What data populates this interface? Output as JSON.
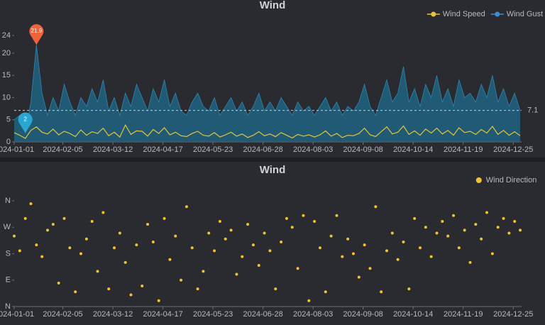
{
  "chart_data": [
    {
      "type": "line",
      "title": "Wind",
      "x": [
        "2024-01-01",
        "2024-01-05",
        "2024-01-09",
        "2024-01-13",
        "2024-01-17",
        "2024-01-21",
        "2024-01-25",
        "2024-01-29",
        "2024-02-02",
        "2024-02-06",
        "2024-02-10",
        "2024-02-14",
        "2024-02-18",
        "2024-02-22",
        "2024-02-26",
        "2024-03-01",
        "2024-03-05",
        "2024-03-09",
        "2024-03-13",
        "2024-03-17",
        "2024-03-21",
        "2024-03-25",
        "2024-03-29",
        "2024-04-02",
        "2024-04-06",
        "2024-04-10",
        "2024-04-14",
        "2024-04-18",
        "2024-04-22",
        "2024-04-26",
        "2024-04-30",
        "2024-05-04",
        "2024-05-08",
        "2024-05-12",
        "2024-05-16",
        "2024-05-20",
        "2024-05-24",
        "2024-05-28",
        "2024-06-01",
        "2024-06-05",
        "2024-06-09",
        "2024-06-13",
        "2024-06-17",
        "2024-06-21",
        "2024-06-25",
        "2024-06-29",
        "2024-07-03",
        "2024-07-07",
        "2024-07-11",
        "2024-07-15",
        "2024-07-19",
        "2024-07-23",
        "2024-07-27",
        "2024-07-31",
        "2024-08-04",
        "2024-08-08",
        "2024-08-12",
        "2024-08-16",
        "2024-08-20",
        "2024-08-24",
        "2024-08-28",
        "2024-09-01",
        "2024-09-05",
        "2024-09-09",
        "2024-09-13",
        "2024-09-17",
        "2024-09-21",
        "2024-09-25",
        "2024-09-29",
        "2024-10-03",
        "2024-10-07",
        "2024-10-11",
        "2024-10-15",
        "2024-10-19",
        "2024-10-23",
        "2024-10-27",
        "2024-10-31",
        "2024-11-04",
        "2024-11-08",
        "2024-11-12",
        "2024-11-16",
        "2024-11-20",
        "2024-11-24",
        "2024-11-28",
        "2024-12-02",
        "2024-12-06",
        "2024-12-10",
        "2024-12-14",
        "2024-12-18",
        "2024-12-22",
        "2024-12-26",
        "2024-12-30"
      ],
      "series": [
        {
          "name": "Wind Speed",
          "color": "#e6c53a",
          "values": [
            2.1,
            1.5,
            0.8,
            2.6,
            3.4,
            2.2,
            1.8,
            2.9,
            1.6,
            2.4,
            1.9,
            1.2,
            2.7,
            1.5,
            2.3,
            1.9,
            3.1,
            1.4,
            2.2,
            1.1,
            3.8,
            1.7,
            2.5,
            2.4,
            1.3,
            2.8,
            1.9,
            3.2,
            1.6,
            2.2,
            1.4,
            1.2,
            1.9,
            2.4,
            1.5,
            1.3,
            2.1,
            1.1,
            1.6,
            2.2,
            1.3,
            1.8,
            1.0,
            1.5,
            2.3,
            1.4,
            1.8,
            1.2,
            2.1,
            1.5,
            0.9,
            1.7,
            1.3,
            1.6,
            1.1,
            1.6,
            2.5,
            1.3,
            1.9,
            1.0,
            1.5,
            1.4,
            1.9,
            3.1,
            1.6,
            1.2,
            2.3,
            3.4,
            1.8,
            2.2,
            3.6,
            1.7,
            2.5,
            1.5,
            2.9,
            2.0,
            3.1,
            1.8,
            2.6,
            1.5,
            3.2,
            2.1,
            2.4,
            1.7,
            2.8,
            2.0,
            3.5,
            1.7,
            2.6,
            1.5,
            2.3,
            1.4
          ]
        },
        {
          "name": "Wind Gust",
          "color": "#3b8fd6",
          "area": true,
          "values": [
            5,
            6,
            2,
            9,
            21.9,
            11,
            6,
            10,
            7,
            13,
            9,
            6,
            10,
            8,
            12,
            9,
            14,
            7,
            10,
            6,
            11,
            8,
            13,
            10,
            7,
            12,
            9,
            14,
            8,
            11,
            7,
            6,
            9,
            11,
            8,
            7,
            10,
            6,
            8,
            10,
            7,
            9,
            6,
            8,
            11,
            7,
            9,
            7,
            10,
            8,
            6,
            9,
            7,
            8,
            6,
            8,
            10,
            7,
            9,
            6,
            8,
            7,
            9,
            13,
            8,
            6,
            10,
            14,
            9,
            11,
            17,
            9,
            12,
            8,
            13,
            10,
            15,
            9,
            12,
            8,
            14,
            10,
            11,
            9,
            13,
            10,
            15,
            9,
            12,
            8,
            11,
            7
          ]
        }
      ],
      "xlim": [
        "2024-01-01",
        "2024-12-31"
      ],
      "xticks": [
        "2024-01-01",
        "2024-02-05",
        "2024-03-12",
        "2024-04-17",
        "2024-05-23",
        "2024-06-28",
        "2024-08-03",
        "2024-09-08",
        "2024-10-14",
        "2024-11-19",
        "2024-12-25"
      ],
      "ylim": [
        0,
        24
      ],
      "yticks": [
        0,
        5,
        10,
        15,
        20,
        24
      ],
      "mark_line": 7.1,
      "mark_points": [
        {
          "x": "2024-01-17",
          "value": 21.9,
          "color": "#f0643c"
        },
        {
          "x": "2024-01-09",
          "value": 2,
          "color": "#2aa7d0"
        }
      ],
      "legend": "top-right"
    },
    {
      "type": "scatter",
      "title": "Wind",
      "x": [
        "2024-01-01",
        "2024-01-05",
        "2024-01-09",
        "2024-01-13",
        "2024-01-17",
        "2024-01-21",
        "2024-01-25",
        "2024-01-29",
        "2024-02-02",
        "2024-02-06",
        "2024-02-10",
        "2024-02-14",
        "2024-02-18",
        "2024-02-22",
        "2024-02-26",
        "2024-03-01",
        "2024-03-05",
        "2024-03-09",
        "2024-03-13",
        "2024-03-17",
        "2024-03-21",
        "2024-03-25",
        "2024-03-29",
        "2024-04-02",
        "2024-04-06",
        "2024-04-10",
        "2024-04-14",
        "2024-04-18",
        "2024-04-22",
        "2024-04-26",
        "2024-04-30",
        "2024-05-04",
        "2024-05-08",
        "2024-05-12",
        "2024-05-16",
        "2024-05-20",
        "2024-05-24",
        "2024-05-28",
        "2024-06-01",
        "2024-06-05",
        "2024-06-09",
        "2024-06-13",
        "2024-06-17",
        "2024-06-21",
        "2024-06-25",
        "2024-06-29",
        "2024-07-03",
        "2024-07-07",
        "2024-07-11",
        "2024-07-15",
        "2024-07-19",
        "2024-07-23",
        "2024-07-27",
        "2024-07-31",
        "2024-08-04",
        "2024-08-08",
        "2024-08-12",
        "2024-08-16",
        "2024-08-20",
        "2024-08-24",
        "2024-08-28",
        "2024-09-01",
        "2024-09-05",
        "2024-09-09",
        "2024-09-13",
        "2024-09-17",
        "2024-09-21",
        "2024-09-25",
        "2024-09-29",
        "2024-10-03",
        "2024-10-07",
        "2024-10-11",
        "2024-10-15",
        "2024-10-19",
        "2024-10-23",
        "2024-10-27",
        "2024-10-31",
        "2024-11-04",
        "2024-11-08",
        "2024-11-12",
        "2024-11-16",
        "2024-11-20",
        "2024-11-24",
        "2024-11-28",
        "2024-12-02",
        "2024-12-06",
        "2024-12-10",
        "2024-12-14",
        "2024-12-18",
        "2024-12-22",
        "2024-12-26",
        "2024-12-30"
      ],
      "series": [
        {
          "name": "Wind Direction",
          "color": "#f2c230",
          "values": [
            240,
            190,
            300,
            350,
            210,
            170,
            260,
            280,
            80,
            300,
            200,
            50,
            180,
            230,
            290,
            120,
            320,
            60,
            200,
            250,
            150,
            40,
            210,
            70,
            280,
            220,
            20,
            300,
            160,
            240,
            90,
            340,
            200,
            60,
            120,
            250,
            190,
            290,
            230,
            260,
            110,
            170,
            280,
            210,
            140,
            250,
            190,
            60,
            220,
            300,
            270,
            130,
            310,
            20,
            290,
            200,
            50,
            240,
            310,
            170,
            230,
            180,
            100,
            210,
            130,
            340,
            50,
            190,
            250,
            160,
            220,
            60,
            300,
            200,
            270,
            170,
            250,
            290,
            240,
            310,
            200,
            260,
            150,
            280,
            230,
            320,
            180,
            270,
            300,
            250,
            290,
            260
          ]
        }
      ],
      "xlim": [
        "2024-01-01",
        "2024-12-31"
      ],
      "xticks": [
        "2024-01-01",
        "2024-02-05",
        "2024-03-12",
        "2024-04-17",
        "2024-05-23",
        "2024-06-28",
        "2024-08-03",
        "2024-09-08",
        "2024-10-14",
        "2024-11-19",
        "2024-12-25"
      ],
      "ylim": [
        0,
        360
      ],
      "yticks": [
        {
          "value": 0,
          "label": "N"
        },
        {
          "value": 90,
          "label": "E"
        },
        {
          "value": 180,
          "label": "S"
        },
        {
          "value": 270,
          "label": "W"
        },
        {
          "value": 360,
          "label": "N"
        }
      ],
      "legend": "top-right"
    }
  ]
}
